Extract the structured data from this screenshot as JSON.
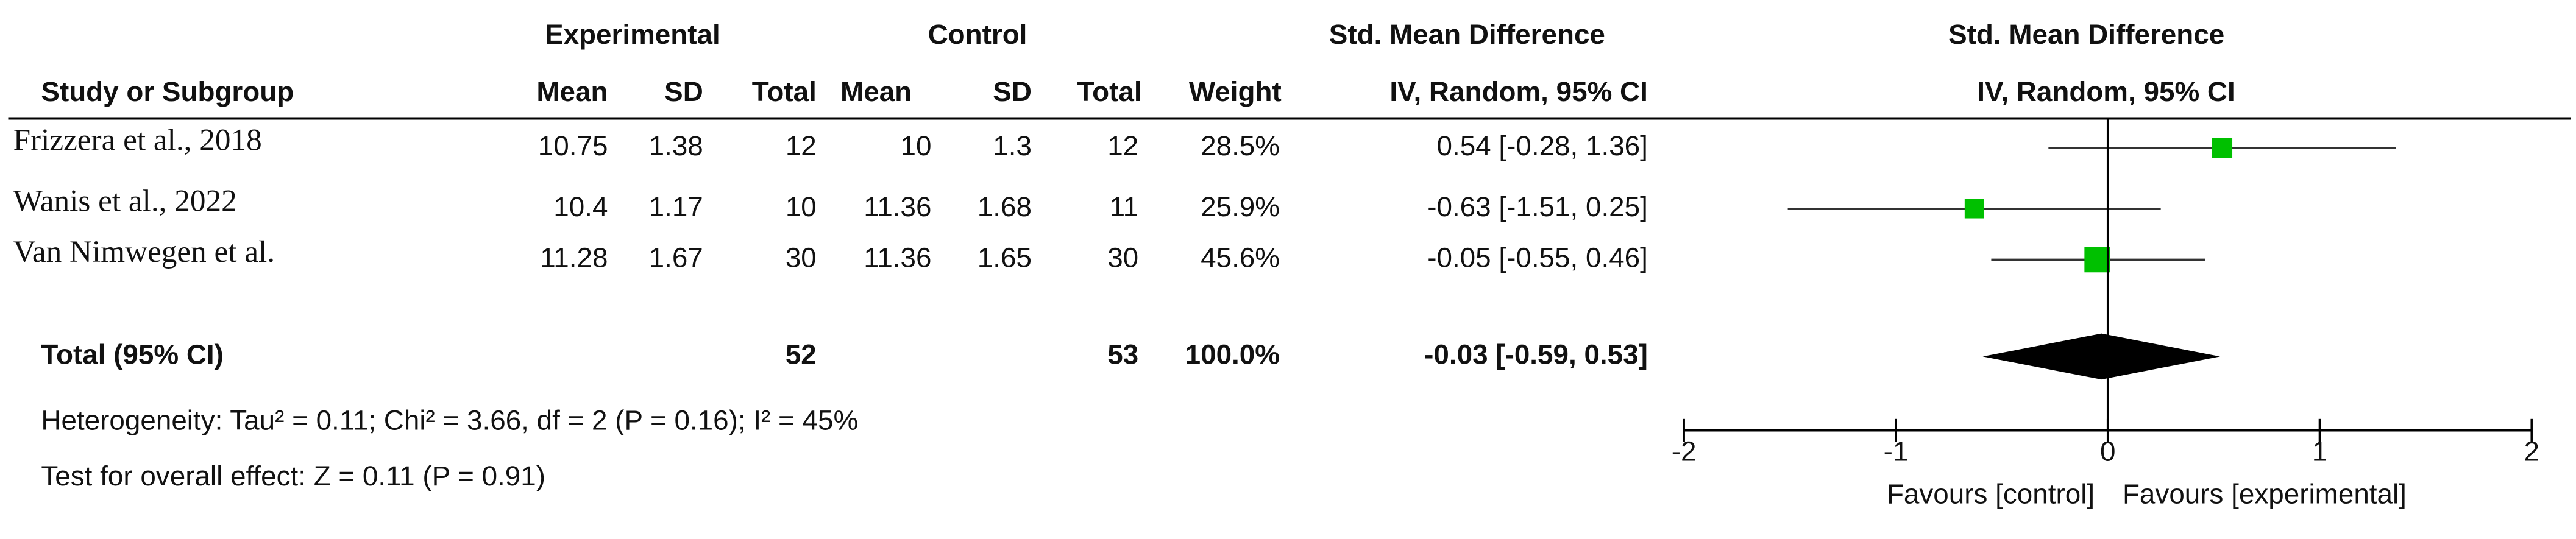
{
  "chart_data": {
    "type": "forest",
    "header": {
      "groups": [
        "Experimental",
        "Control",
        "Std. Mean Difference",
        "Std. Mean Difference"
      ],
      "columns": [
        "Study or Subgroup",
        "Mean",
        "SD",
        "Total",
        "Mean",
        "SD",
        "Total",
        "Weight",
        "IV, Random, 95% CI",
        "IV, Random, 95% CI"
      ]
    },
    "rows": [
      {
        "study": "Frizzera  et al., 2018",
        "exp_mean": 10.75,
        "exp_sd": 1.38,
        "exp_total": 12,
        "ctl_mean": 10,
        "ctl_sd": 1.3,
        "ctl_total": 12,
        "weight": 28.5,
        "weight_label": "28.5%",
        "estimate": 0.54,
        "lower": -0.28,
        "upper": 1.36,
        "ci_label": "0.54 [-0.28, 1.36]"
      },
      {
        "study": "Wanis et al., 2022",
        "exp_mean": 10.4,
        "exp_sd": 1.17,
        "exp_total": 10,
        "ctl_mean": 11.36,
        "ctl_sd": 1.68,
        "ctl_total": 11,
        "weight": 25.9,
        "weight_label": "25.9%",
        "estimate": -0.63,
        "lower": -1.51,
        "upper": 0.25,
        "ci_label": "-0.63 [-1.51, 0.25]"
      },
      {
        "study": "Van Nimwegen  et al.",
        "exp_mean": 11.28,
        "exp_sd": 1.67,
        "exp_total": 30,
        "ctl_mean": 11.36,
        "ctl_sd": 1.65,
        "ctl_total": 30,
        "weight": 45.6,
        "weight_label": "45.6%",
        "estimate": -0.05,
        "lower": -0.55,
        "upper": 0.46,
        "ci_label": "-0.05 [-0.55, 0.46]"
      }
    ],
    "total": {
      "label": "Total (95% CI)",
      "exp_total": 52,
      "ctl_total": 53,
      "weight_label": "100.0%",
      "estimate": -0.03,
      "lower": -0.59,
      "upper": 0.53,
      "ci_label": "-0.03 [-0.59, 0.53]"
    },
    "heterogeneity": "Heterogeneity: Tau² = 0.11; Chi² = 3.66, df = 2 (P = 0.16); I² = 45%",
    "overall_effect": "Test for overall effect: Z = 0.11 (P = 0.91)",
    "xlim": [
      -2,
      2
    ],
    "xticks": [
      -2,
      -1,
      0,
      1,
      2
    ],
    "favours_left": "Favours [control]",
    "favours_right": "Favours [experimental]",
    "square_color": "#00c000",
    "diamond_color": "#000000"
  }
}
